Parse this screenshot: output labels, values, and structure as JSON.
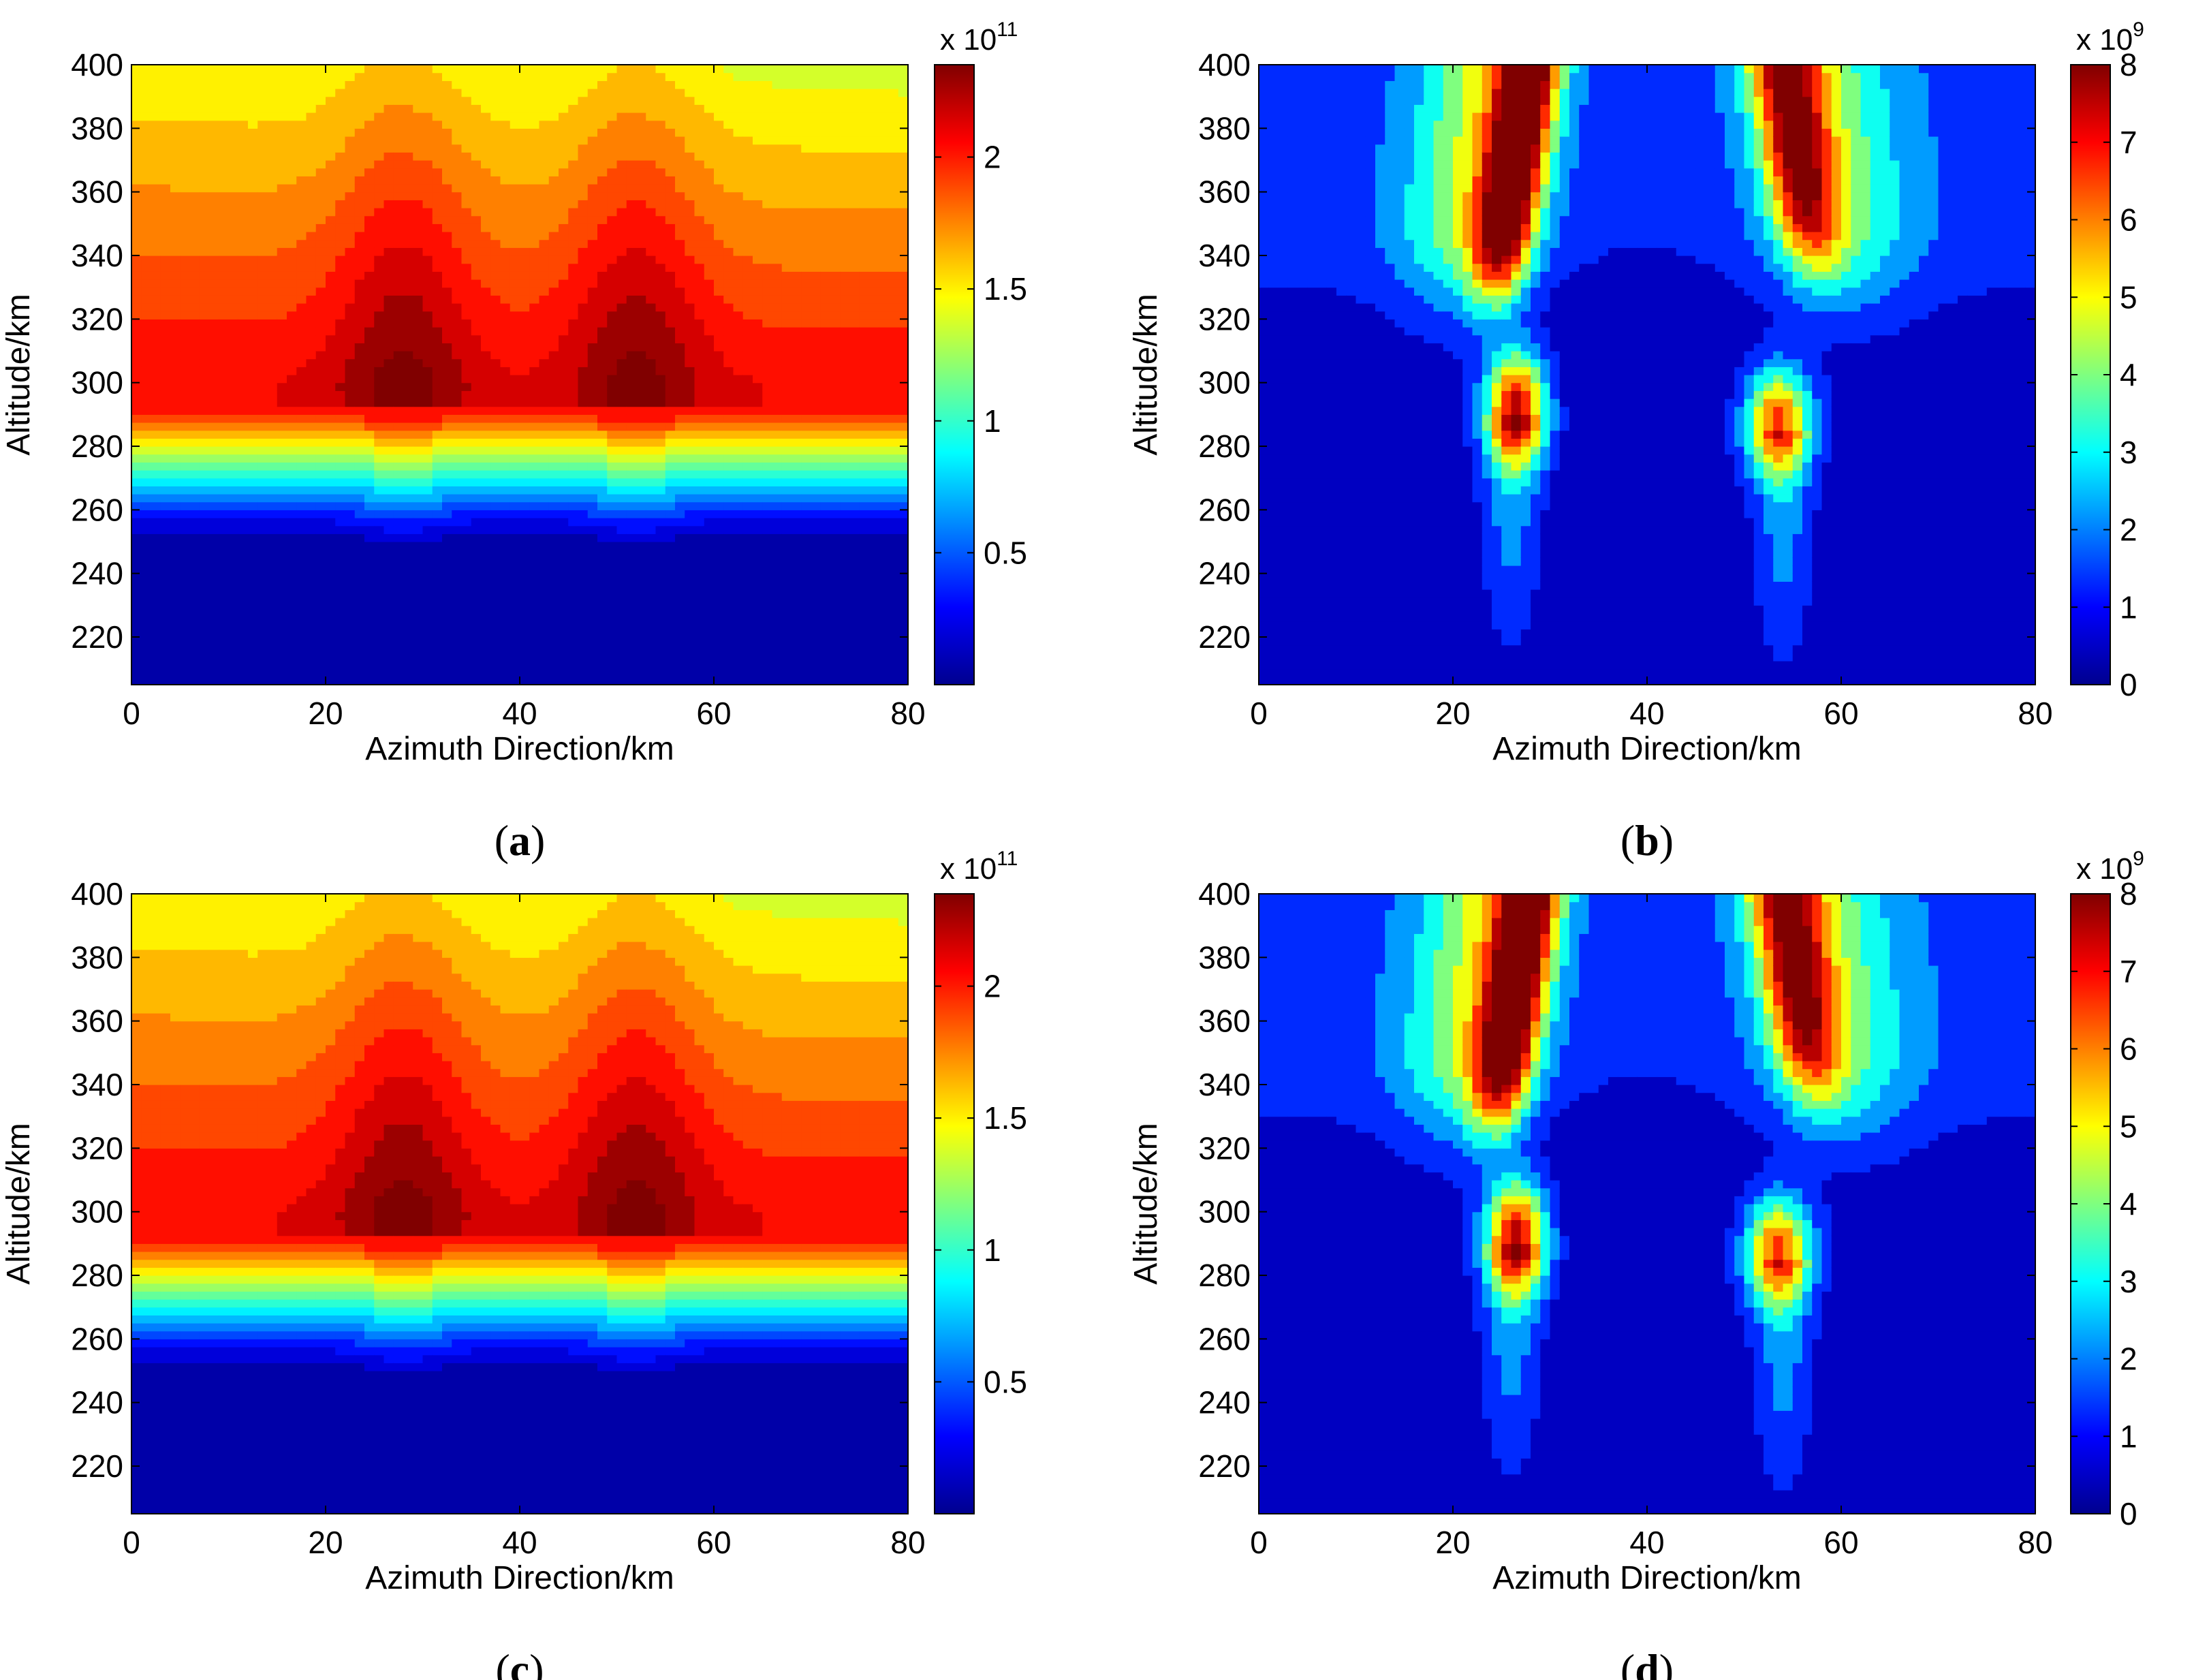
{
  "chart_data": [
    {
      "type": "heatmap",
      "panel": "a",
      "caption_label": "(a)",
      "caption_letter": "a",
      "xlabel": "Azimuth Direction/km",
      "ylabel": "Altitude/km",
      "xlim": [
        0,
        80
      ],
      "ylim": [
        205,
        400
      ],
      "x_ticks": [
        "0",
        "20",
        "40",
        "60",
        "80"
      ],
      "y_ticks": [
        "220",
        "240",
        "260",
        "280",
        "300",
        "320",
        "340",
        "360",
        "380",
        "400"
      ],
      "colorbar": {
        "range": [
          0,
          2.35
        ],
        "ticks": [
          "0.5",
          "1",
          "1.5",
          "2"
        ],
        "multiplier_base": "x 10",
        "multiplier_exp": "11"
      },
      "features": [
        {
          "shape": "electron density peak",
          "center_azimuth_km": 28,
          "center_altitude_km": 305,
          "value_e11": 2.3
        },
        {
          "shape": "electron density peak",
          "center_azimuth_km": 52,
          "center_altitude_km": 305,
          "value_e11": 2.3
        }
      ],
      "description_values": {
        "bottomside_value_e11": 0.05,
        "F2_layer_value_e11": 2.1,
        "topside_value_e11": 1.3
      }
    },
    {
      "type": "heatmap",
      "panel": "b",
      "caption_label": "(b)",
      "caption_letter": "b",
      "xlabel": "Azimuth Direction/km",
      "ylabel": "Altitude/km",
      "xlim": [
        0,
        80
      ],
      "ylim": [
        205,
        400
      ],
      "x_ticks": [
        "0",
        "20",
        "40",
        "60",
        "80"
      ],
      "y_ticks": [
        "220",
        "240",
        "260",
        "280",
        "300",
        "320",
        "340",
        "360",
        "380",
        "400"
      ],
      "colorbar": {
        "range": [
          0,
          8
        ],
        "ticks": [
          "0",
          "1",
          "2",
          "3",
          "4",
          "5",
          "6",
          "7",
          "8"
        ],
        "multiplier_base": "x 10",
        "multiplier_exp": "9"
      },
      "features": [
        {
          "shape": "plume",
          "center_azimuth_km": 26,
          "center_altitude_km": 290,
          "value_e9": 7.5
        },
        {
          "shape": "plume",
          "center_azimuth_km": 54,
          "center_altitude_km": 280,
          "value_e9": 6.5
        },
        {
          "shape": "topside arm",
          "center_azimuth_km": 27,
          "center_altitude_km": 380,
          "value_e9": 7.8
        },
        {
          "shape": "topside arm",
          "center_azimuth_km": 56,
          "center_altitude_km": 380,
          "value_e9": 6.5
        }
      ]
    },
    {
      "type": "heatmap",
      "panel": "c",
      "caption_label": "(c)",
      "caption_letter": "c",
      "xlabel": "Azimuth Direction/km",
      "ylabel": "Altitude/km",
      "xlim": [
        0,
        80
      ],
      "ylim": [
        205,
        400
      ],
      "x_ticks": [
        "0",
        "20",
        "40",
        "60",
        "80"
      ],
      "y_ticks": [
        "220",
        "240",
        "260",
        "280",
        "300",
        "320",
        "340",
        "360",
        "380",
        "400"
      ],
      "colorbar": {
        "range": [
          0,
          2.35
        ],
        "ticks": [
          "0.5",
          "1",
          "1.5",
          "2"
        ],
        "multiplier_base": "x 10",
        "multiplier_exp": "11"
      },
      "features": [
        {
          "shape": "electron density peak",
          "center_azimuth_km": 28,
          "center_altitude_km": 305,
          "value_e11": 2.3
        },
        {
          "shape": "electron density peak",
          "center_azimuth_km": 52,
          "center_altitude_km": 305,
          "value_e11": 2.3
        }
      ]
    },
    {
      "type": "heatmap",
      "panel": "d",
      "caption_label": "(d)",
      "caption_letter": "d",
      "xlabel": "Azimuth Direction/km",
      "ylabel": "Altitude/km",
      "xlim": [
        0,
        80
      ],
      "ylim": [
        205,
        400
      ],
      "x_ticks": [
        "0",
        "20",
        "40",
        "60",
        "80"
      ],
      "y_ticks": [
        "220",
        "240",
        "260",
        "280",
        "300",
        "320",
        "340",
        "360",
        "380",
        "400"
      ],
      "colorbar": {
        "range": [
          0,
          8
        ],
        "ticks": [
          "0",
          "1",
          "2",
          "3",
          "4",
          "5",
          "6",
          "7",
          "8"
        ],
        "multiplier_base": "x 10",
        "multiplier_exp": "9"
      },
      "features": [
        {
          "shape": "plume",
          "center_azimuth_km": 26,
          "center_altitude_km": 290,
          "value_e9": 7.5
        },
        {
          "shape": "plume",
          "center_azimuth_km": 54,
          "center_altitude_km": 280,
          "value_e9": 6.5
        },
        {
          "shape": "topside arm",
          "center_azimuth_km": 27,
          "center_altitude_km": 380,
          "value_e9": 7.8
        },
        {
          "shape": "topside arm",
          "center_azimuth_km": 56,
          "center_altitude_km": 380,
          "value_e9": 6.5
        }
      ]
    }
  ]
}
